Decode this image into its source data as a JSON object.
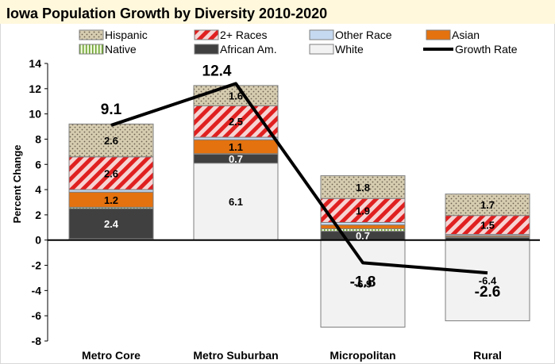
{
  "chart_data": {
    "type": "bar",
    "stacked": true,
    "title": "Iowa Population Growth by Diversity 2010-2020",
    "xlabel": "",
    "ylabel": "Percent Change",
    "ylim": [
      -8,
      14
    ],
    "yticks": [
      -8,
      -6,
      -4,
      -2,
      0,
      2,
      4,
      6,
      8,
      10,
      12,
      14
    ],
    "grid": false,
    "legend_position": "top",
    "categories": [
      "Metro Core",
      "Metro Suburban",
      "Micropolitan",
      "Rural"
    ],
    "series": [
      {
        "name": "White",
        "values": [
          0.1,
          6.1,
          -6.9,
          -6.4
        ],
        "color": "#f2f2f2",
        "labels": [
          null,
          "6.1",
          "-6.9",
          "-6.4"
        ]
      },
      {
        "name": "African Am.",
        "values": [
          2.4,
          0.7,
          0.7,
          0.2
        ],
        "color": "#404040",
        "labels": [
          "2.4",
          "0.7",
          "0.7",
          null
        ]
      },
      {
        "name": "Native",
        "values": [
          0.1,
          0.05,
          0.2,
          0.05
        ],
        "color": "#c9e3a0",
        "labels": [
          null,
          null,
          null,
          null
        ]
      },
      {
        "name": "Asian",
        "values": [
          1.2,
          1.1,
          0.3,
          0.1
        ],
        "color": "#e4720f",
        "labels": [
          "1.2",
          "1.1",
          null,
          null
        ]
      },
      {
        "name": "Other Race",
        "values": [
          0.2,
          0.2,
          0.2,
          0.1
        ],
        "color": "#c5d9f1",
        "labels": [
          null,
          null,
          null,
          null
        ]
      },
      {
        "name": "2+ Races",
        "values": [
          2.6,
          2.5,
          1.9,
          1.5
        ],
        "color": "#e02020",
        "labels": [
          "2.6",
          "2.5",
          "1.9",
          "1.5"
        ]
      },
      {
        "name": "Hispanic",
        "values": [
          2.6,
          1.6,
          1.8,
          1.7
        ],
        "color": "#d6ccb0",
        "labels": [
          "2.6",
          "1.6",
          "1.8",
          "1.7"
        ]
      }
    ],
    "line_series": {
      "name": "Growth Rate",
      "values": [
        9.1,
        12.4,
        -1.8,
        -2.6
      ],
      "labels": [
        "9.1",
        "12.4",
        "-1.8",
        "-2.6"
      ],
      "color": "#000000"
    },
    "legend_order": [
      "Hispanic",
      "2+ Races",
      "Other Race",
      "Asian",
      "Native",
      "African Am.",
      "White",
      "Growth Rate"
    ]
  }
}
